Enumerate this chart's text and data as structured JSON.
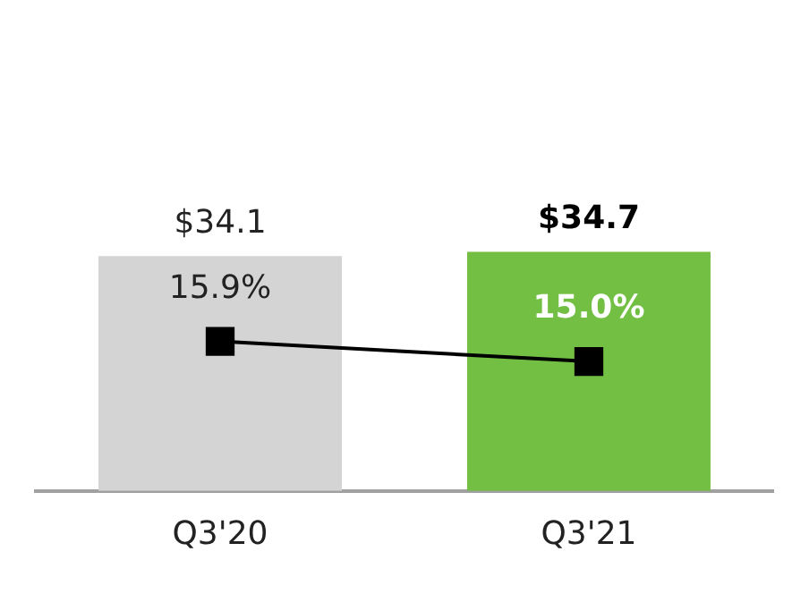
{
  "chart_data": {
    "type": "bar",
    "categories": [
      "Q3'20",
      "Q3'21"
    ],
    "series": [
      {
        "colors": [
          "#d4d4d4",
          "#72bf44"
        ],
        "values": [
          34.1,
          34.7
        ],
        "value_labels": [
          "$34.1",
          "$34.7"
        ]
      },
      {
        "type": "line",
        "color": "#000000",
        "axis": "y2",
        "marker": "square",
        "values": [
          15.9,
          15.0
        ],
        "value_labels": [
          "15.9%",
          "15.0%"
        ]
      }
    ],
    "tick_labels": "x",
    "grid": false,
    "legend": false
  }
}
